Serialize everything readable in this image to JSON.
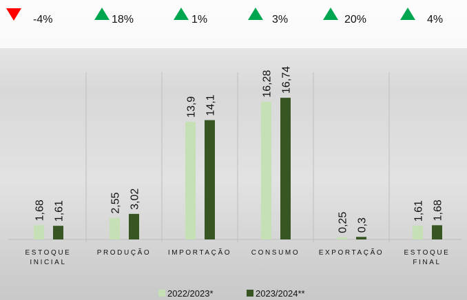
{
  "chart_data": {
    "type": "bar",
    "categories": [
      "ESTOQUE INICIAL",
      "PRODUÇÃO",
      "IMPORTAÇÃO",
      "CONSUMO",
      "EXPORTAÇÃO",
      "ESTOQUE FINAL"
    ],
    "series": [
      {
        "name": "2022/2023*",
        "color": "#c5e0b4",
        "values": [
          1.68,
          2.55,
          13.9,
          16.28,
          0.25,
          1.61
        ],
        "value_labels": [
          "1,68",
          "2,55",
          "13,9",
          "16,28",
          "0,25",
          "1,61"
        ]
      },
      {
        "name": "2023/2024**",
        "color": "#375623",
        "values": [
          1.61,
          3.02,
          14.1,
          16.74,
          0.3,
          1.68
        ],
        "value_labels": [
          "1,61",
          "3,02",
          "14,1",
          "16,74",
          "0,3",
          "1,68"
        ]
      }
    ],
    "annotations": [
      {
        "text": "-4%",
        "direction": "down",
        "color": "#ff0000"
      },
      {
        "text": "18%",
        "direction": "up",
        "color": "#00a550"
      },
      {
        "text": "1%",
        "direction": "up",
        "color": "#00a550"
      },
      {
        "text": "3%",
        "direction": "up",
        "color": "#00a550"
      },
      {
        "text": "20%",
        "direction": "up",
        "color": "#00a550"
      },
      {
        "text": "4%",
        "direction": "up",
        "color": "#00a550"
      }
    ],
    "legend": "bottom"
  }
}
